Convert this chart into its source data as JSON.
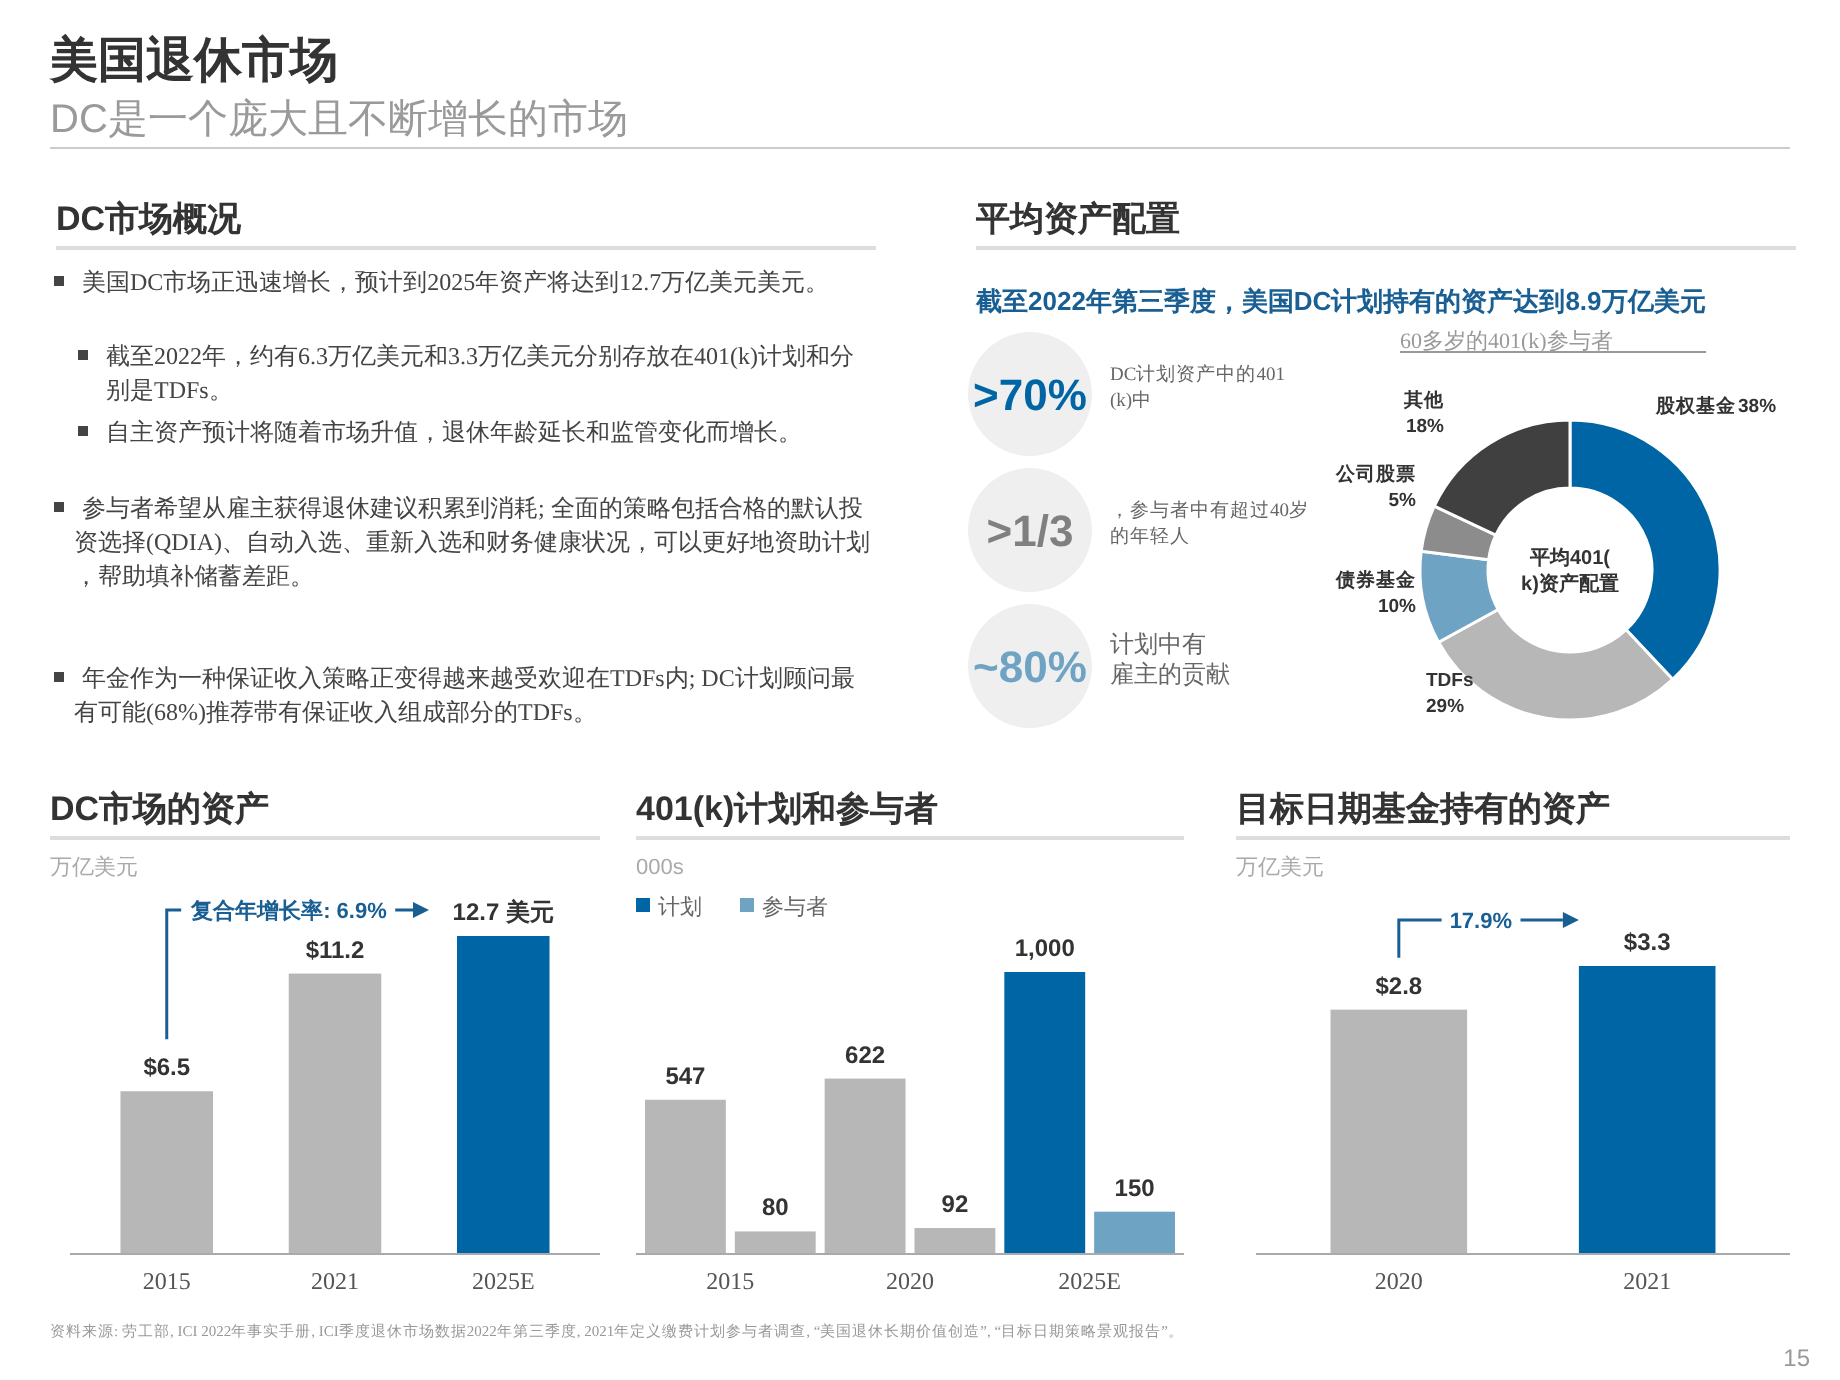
{
  "chart_data": [
    {
      "type": "other",
      "title": "美国退休市场",
      "subtitle": "DC是一个庞大且不断增长的市场",
      "annotations": [
        "DC市场概况",
        "美国DC市场正迅速增长，预计到2025年资产将达到12.7万亿美元美元。",
        "截至2022年，约有6.3万亿美元和3.3万亿美元分别存放在401(k)计划和分别是TDFs。",
        "自主资产预计将随着市场升值，退休年龄延长和监管变化而增长。",
        "参与者希望从雇主获得退休建议积累到消耗; 全面的策略包括合格的默认投资选择(QDIA)、自动入选、重新入选和财务健康状况，可以更好地资助计划，帮助填补储蓄差距。",
        "年金作为一种保证收入策略正变得越来越受欢迎在TDFs内; DC计划顾问最有可能(68%)推荐带有保证收入组成部分的TDFs。",
        "资料来源: 劳工部, ICI 2022年事实手册, ICI季度退休市场数据2022年第三季度, 2021年定义缴费计划参与者调查, “美国退休长期价值创造”, “目标日期策略景观报告”。",
        "15"
      ]
    },
    {
      "type": "donut",
      "title": "平均资产配置",
      "subtitle": "截至2022年第三季度，美国DC计划持有的资产达到8.9万亿美元",
      "categories": [
        "股权基金",
        "TDFs",
        "债券基金",
        "公司股票",
        "其他"
      ],
      "values": [
        38,
        29,
        10,
        5,
        18
      ],
      "colors": [
        "#0065a4",
        "#b7b7b7",
        "#6fa3c4",
        "#8c8c8c",
        "#404040"
      ],
      "value_labels": [
        "38%",
        "29%",
        "10%",
        "5%",
        "18%"
      ],
      "annotations": [
        "60多岁的401(k)参与者",
        "平均401(k)资产配置",
        ">70%",
        "DC计划资产中的401(k)中",
        ">1/3",
        "，参与者中有超过40岁的年轻人",
        "~80%",
        "计划中有雇主的贡献"
      ]
    },
    {
      "type": "bar",
      "title": "DC市场的资产",
      "subtitle": "万亿美元",
      "categories": [
        "2015",
        "2021",
        "2025E"
      ],
      "values": [
        6.5,
        11.2,
        12.7
      ],
      "colors": [
        "#b7b7b7",
        "#b7b7b7",
        "#0065a4"
      ],
      "value_labels": [
        "$6.5",
        "$11.2",
        "12.7 美元"
      ],
      "annotations": [
        "复合年增长率: 6.9%"
      ]
    },
    {
      "type": "bar",
      "title": "401(k)计划和参与者",
      "subtitle": "000s",
      "categories": [
        "2015",
        "2020",
        "2025E"
      ],
      "legend": "top left",
      "series": [
        {
          "name": "计划",
          "color": "#0065a4",
          "colors": [
            "#b7b7b7",
            "#b7b7b7",
            "#0065a4"
          ],
          "values": [
            547,
            622,
            1000
          ],
          "value_labels": [
            "547",
            "622",
            "1,000"
          ]
        },
        {
          "name": "参与者",
          "color": "#6fa3c4",
          "colors": [
            "#b7b7b7",
            "#b7b7b7",
            "#6fa3c4"
          ],
          "values": [
            80,
            92,
            150
          ],
          "value_labels": [
            "80",
            "92",
            "150"
          ]
        }
      ]
    },
    {
      "type": "bar",
      "title": "目标日期基金持有的资产",
      "subtitle": "万亿美元",
      "categories": [
        "2020",
        "2021"
      ],
      "values": [
        2.8,
        3.3
      ],
      "colors": [
        "#b7b7b7",
        "#0065a4"
      ],
      "value_labels": [
        "$2.8",
        "$3.3"
      ],
      "annotations": [
        "17.9%"
      ]
    }
  ]
}
